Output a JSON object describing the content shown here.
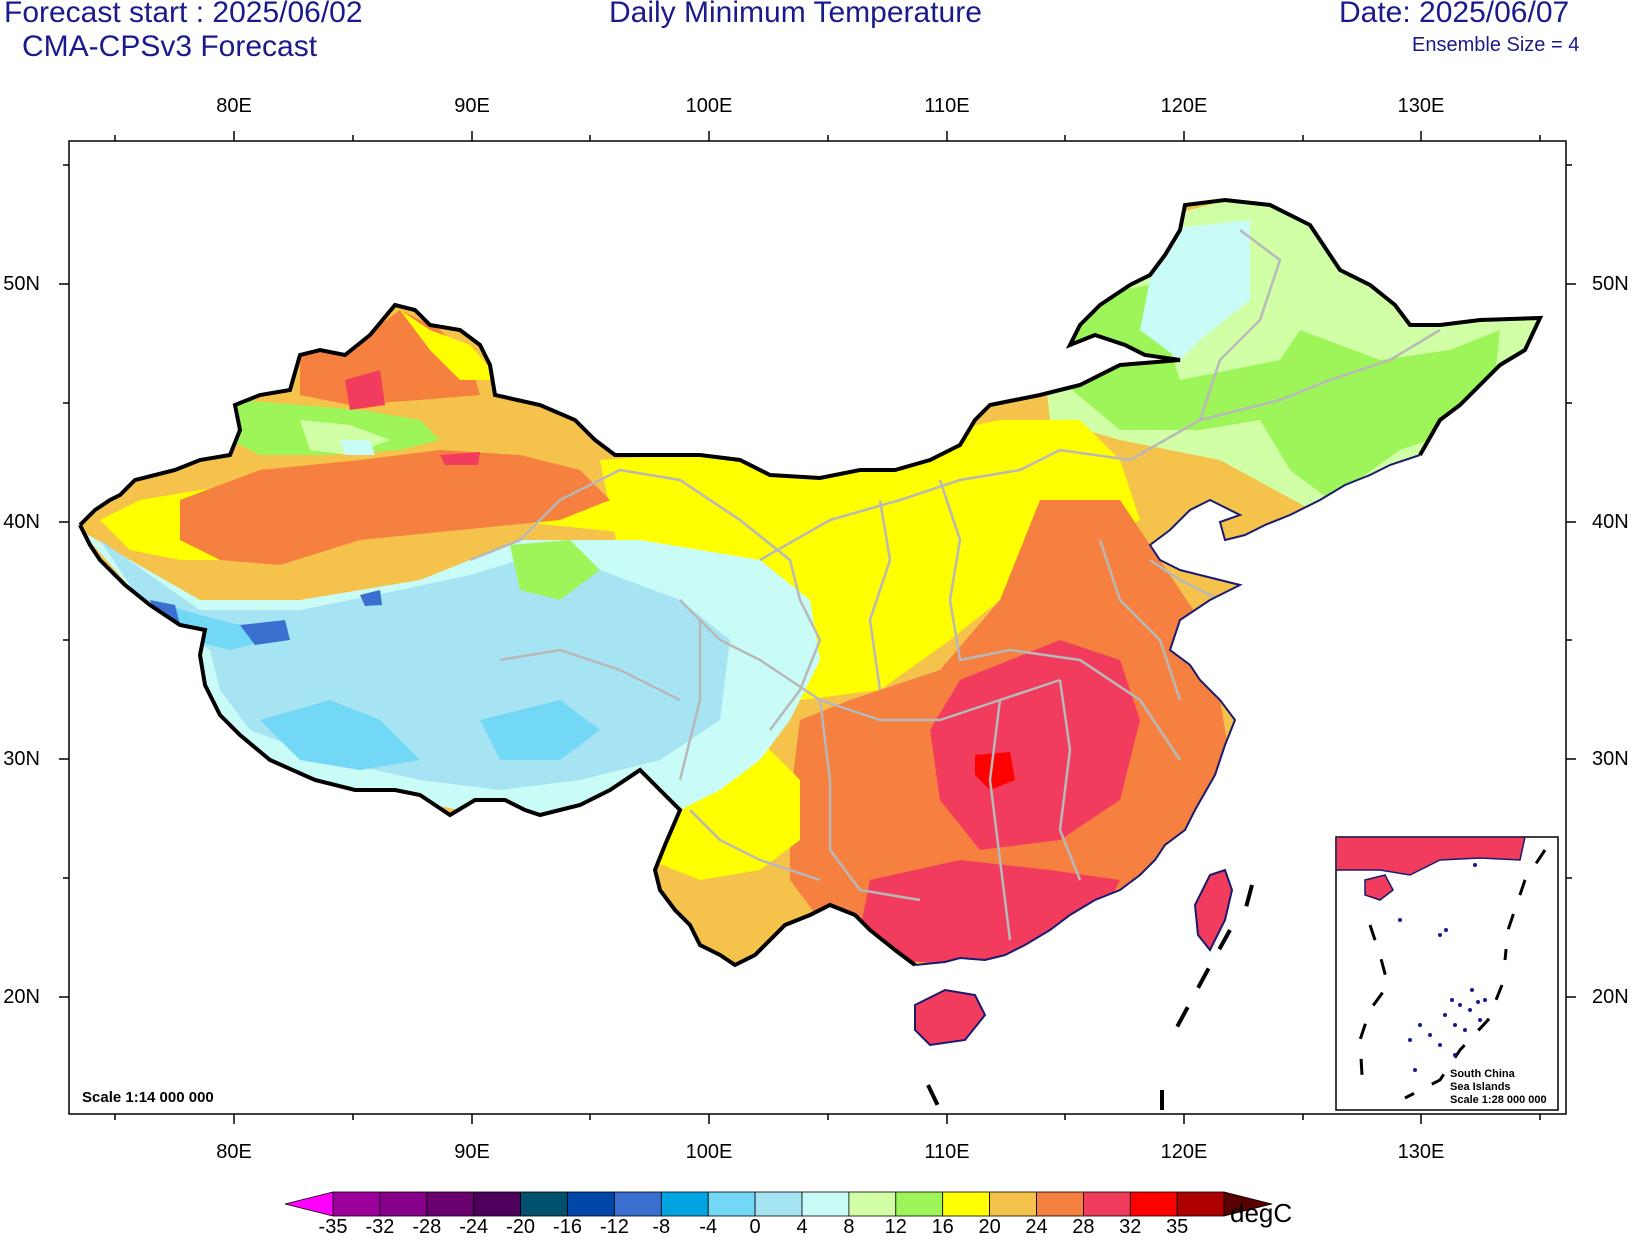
{
  "header": {
    "forecast_start": "Forecast start : 2025/06/02",
    "model": "CMA-CPSv3 Forecast",
    "title": "Daily Minimum Temperature",
    "date": "Date: 2025/06/07",
    "ensemble": "Ensemble Size = 4"
  },
  "axes": {
    "lon_labels": [
      "80E",
      "90E",
      "100E",
      "110E",
      "120E",
      "130E"
    ],
    "lat_labels": [
      "50N",
      "40N",
      "30N",
      "20N"
    ]
  },
  "scale_main": "Scale 1:14 000 000",
  "inset": {
    "line1": "South China",
    "line2": "Sea Islands",
    "line3": "Scale 1:28 000 000"
  },
  "colorbar": {
    "unit": "degC",
    "labels": [
      "-35",
      "-32",
      "-28",
      "-24",
      "-20",
      "-16",
      "-12",
      "-8",
      "-4",
      "0",
      "4",
      "8",
      "12",
      "16",
      "20",
      "24",
      "28",
      "32",
      "35"
    ],
    "colors": [
      "#9b009b",
      "#86008a",
      "#6a006f",
      "#4c005c",
      "#00506e",
      "#0047a8",
      "#3a6fd0",
      "#00a4e0",
      "#72d8f5",
      "#a7e4f3",
      "#c9fbf7",
      "#d1ffa6",
      "#9df55a",
      "#ffff00",
      "#f5c34c",
      "#f58040",
      "#f23c5e",
      "#ff0000",
      "#ad0000"
    ],
    "low_color": "#ff00ff",
    "high_color": "#5a0000"
  }
}
